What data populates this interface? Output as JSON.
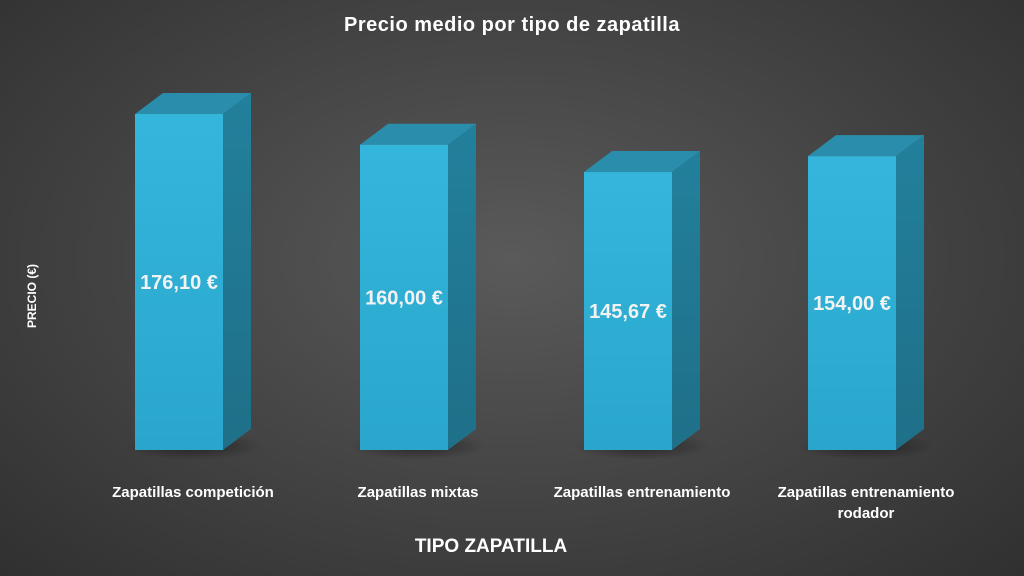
{
  "chart_data": {
    "type": "bar",
    "title": "Precio medio por tipo de zapatilla",
    "xlabel": "TIPO ZAPATILLA",
    "ylabel": "PRECIO (€)",
    "categories": [
      "Zapatillas competición",
      "Zapatillas mixtas",
      "Zapatillas entrenamiento",
      "Zapatillas entrenamiento rodador"
    ],
    "values": [
      176.1,
      160.0,
      145.67,
      154.0
    ],
    "data_labels": [
      "176,10 €",
      "160,00 €",
      "145,67 €",
      "154,00 €"
    ],
    "ylim": [
      0,
      176.1
    ],
    "grid": false,
    "legend": "none",
    "style": "3d-column"
  },
  "colors": {
    "bar_front": "#34b6dc",
    "bar_side": "#1f6f88",
    "bar_top": "#2a8dac",
    "background": "#474747",
    "text": "#ffffff"
  }
}
